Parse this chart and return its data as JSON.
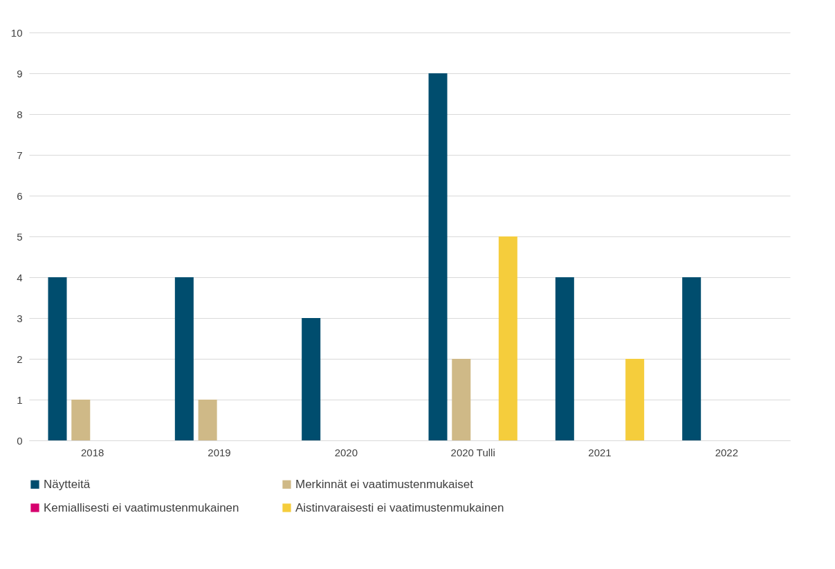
{
  "chart_data": {
    "type": "bar",
    "categories": [
      "2018",
      "2019",
      "2020",
      "2020 Tulli",
      "2021",
      "2022"
    ],
    "series": [
      {
        "name": "Näytteitä",
        "color": "#004d6e",
        "values": [
          4,
          4,
          3,
          9,
          4,
          4
        ]
      },
      {
        "name": "Merkinnät ei vaatimustenmukaiset",
        "color": "#cfb987",
        "values": [
          1,
          1,
          0,
          2,
          0,
          0
        ]
      },
      {
        "name": "Kemiallisesti ei vaatimustenmukainen",
        "color": "#d6006e",
        "values": [
          0,
          0,
          0,
          0,
          0,
          0
        ]
      },
      {
        "name": "Aistinvaraisesti ei vaatimustenmukainen",
        "color": "#f5cd3c",
        "values": [
          0,
          0,
          0,
          5,
          2,
          0
        ]
      }
    ],
    "ylim": [
      0,
      10
    ],
    "yticks": [
      0,
      1,
      2,
      3,
      4,
      5,
      6,
      7,
      8,
      9,
      10
    ],
    "grid": "y",
    "legend": "bottom"
  }
}
